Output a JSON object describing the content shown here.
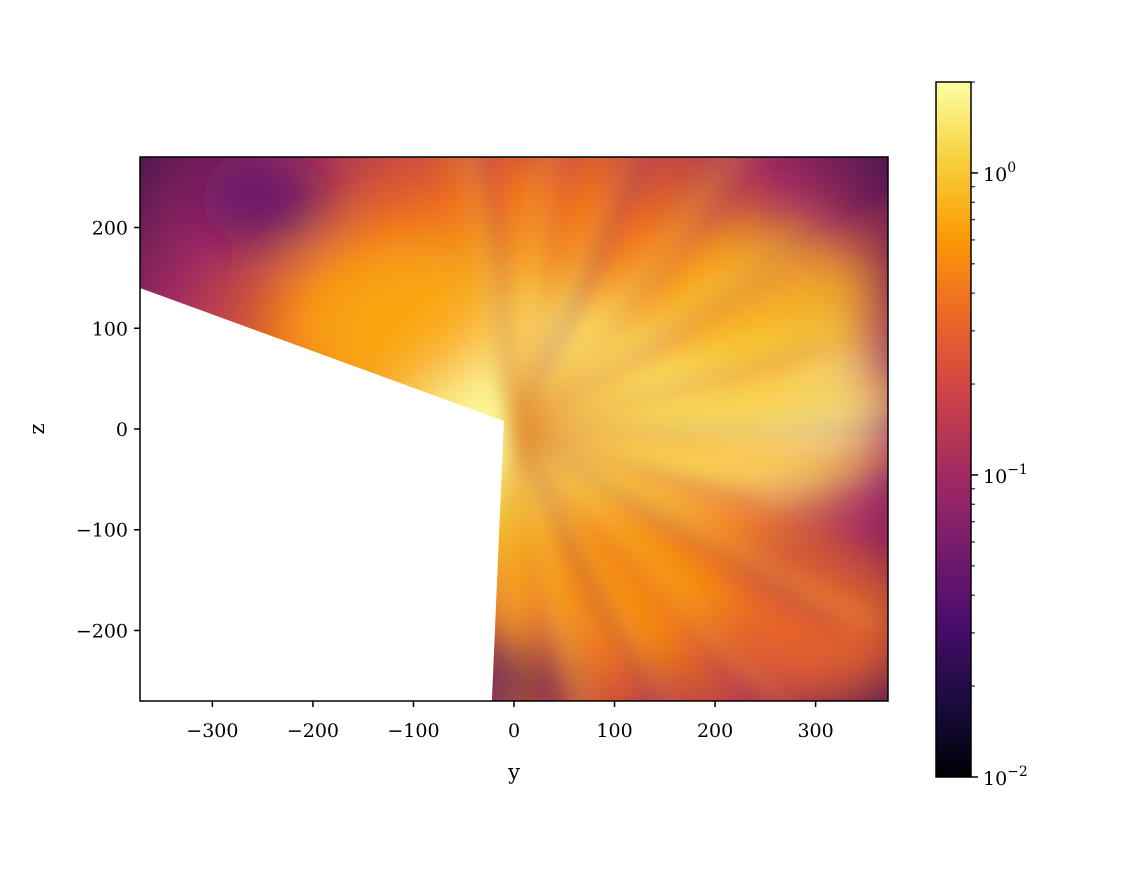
{
  "chart_data": {
    "type": "heatmap",
    "title": "",
    "xlabel": "y",
    "ylabel": "z",
    "xlim": [
      -372,
      372
    ],
    "ylim": [
      -270,
      270
    ],
    "x_ticks": [
      {
        "value": -300,
        "label": "−300"
      },
      {
        "value": -200,
        "label": "−200"
      },
      {
        "value": -100,
        "label": "−100"
      },
      {
        "value": 0,
        "label": "0"
      },
      {
        "value": 100,
        "label": "100"
      },
      {
        "value": 200,
        "label": "200"
      },
      {
        "value": 300,
        "label": "300"
      }
    ],
    "y_ticks": [
      {
        "value": 200,
        "label": "200"
      },
      {
        "value": 100,
        "label": "100"
      },
      {
        "value": 0,
        "label": "0"
      },
      {
        "value": -100,
        "label": "−100"
      },
      {
        "value": -200,
        "label": "−200"
      }
    ],
    "colorbar": {
      "scale": "log",
      "colormap": "inferno",
      "range": [
        0.01,
        2.0
      ],
      "ticks": [
        {
          "value": 0.01,
          "base": "10",
          "exp": "−2"
        },
        {
          "value": 0.1,
          "base": "10",
          "exp": "−1"
        },
        {
          "value": 1,
          "base": "10",
          "exp": "0"
        }
      ],
      "colors": [
        "#000004",
        "#1b0c41",
        "#4a0c6b",
        "#781c6d",
        "#a52c60",
        "#cf4446",
        "#ed6925",
        "#fb9b06",
        "#f7d13d",
        "#fcffa4"
      ]
    },
    "masked_region": {
      "fill": "#ffffff",
      "boundary": [
        [
          -372,
          140
        ],
        [
          -10,
          8
        ],
        [
          -22,
          -270
        ],
        [
          -372,
          -270
        ]
      ]
    },
    "source": {
      "y": 0,
      "z": 0
    },
    "features": [
      {
        "y": 30,
        "z": 40,
        "value": 2.0
      },
      {
        "y": 250,
        "z": 20,
        "value": 1.8
      },
      {
        "y": 160,
        "z": 25,
        "value": 1.4
      },
      {
        "y": 250,
        "z": 120,
        "value": 0.9
      },
      {
        "y": -120,
        "z": 110,
        "value": 0.7
      },
      {
        "y": 120,
        "z": -150,
        "value": 0.5
      },
      {
        "y": 300,
        "z": -200,
        "value": 0.35
      },
      {
        "y": -250,
        "z": 230,
        "value": 0.04
      },
      {
        "y": 0,
        "z": -250,
        "value": 0.03
      }
    ]
  }
}
